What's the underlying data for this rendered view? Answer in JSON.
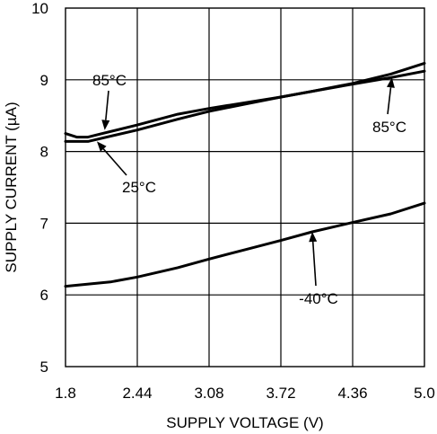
{
  "chart_data": {
    "type": "line",
    "title": "",
    "xlabel": "SUPPLY VOLTAGE (V)",
    "ylabel": "SUPPLY CURRENT (µA)",
    "xlim": [
      1.8,
      5.0
    ],
    "ylim": [
      5,
      10
    ],
    "x_ticks": [
      "1.8",
      "2.44",
      "3.08",
      "3.72",
      "4.36",
      "5.0"
    ],
    "y_ticks": [
      "5",
      "6",
      "7",
      "8",
      "9",
      "10"
    ],
    "grid": true,
    "series": [
      {
        "name": "85°C",
        "x": [
          1.8,
          1.9,
          2.0,
          2.1,
          2.44,
          2.8,
          3.08,
          3.4,
          3.72,
          4.0,
          4.36,
          4.7,
          5.0
        ],
        "y": [
          8.25,
          8.2,
          8.2,
          8.24,
          8.37,
          8.52,
          8.6,
          8.68,
          8.76,
          8.84,
          8.95,
          9.08,
          9.23
        ]
      },
      {
        "name": "25°C",
        "x": [
          1.8,
          2.0,
          2.44,
          2.8,
          3.08,
          3.4,
          3.72,
          4.0,
          4.36,
          4.7,
          5.0
        ],
        "y": [
          8.14,
          8.14,
          8.3,
          8.45,
          8.56,
          8.66,
          8.76,
          8.84,
          8.94,
          9.03,
          9.12
        ]
      },
      {
        "name": "-40°C",
        "x": [
          1.8,
          2.2,
          2.44,
          2.8,
          3.08,
          3.4,
          3.72,
          4.0,
          4.36,
          4.7,
          5.0
        ],
        "y": [
          6.12,
          6.18,
          6.25,
          6.38,
          6.5,
          6.63,
          6.76,
          6.88,
          7.01,
          7.13,
          7.28
        ]
      }
    ],
    "annotations": [
      {
        "text": "85°C",
        "series": "85°C",
        "x": 2.15,
        "y": 8.3
      },
      {
        "text": "25°C",
        "series": "25°C",
        "x": 2.08,
        "y": 8.14
      },
      {
        "text": "85°C",
        "series": "25°C",
        "x": 4.71,
        "y": 9.03
      },
      {
        "text": "-40°C",
        "series": "-40°C",
        "x": 4.0,
        "y": 6.88
      }
    ]
  }
}
